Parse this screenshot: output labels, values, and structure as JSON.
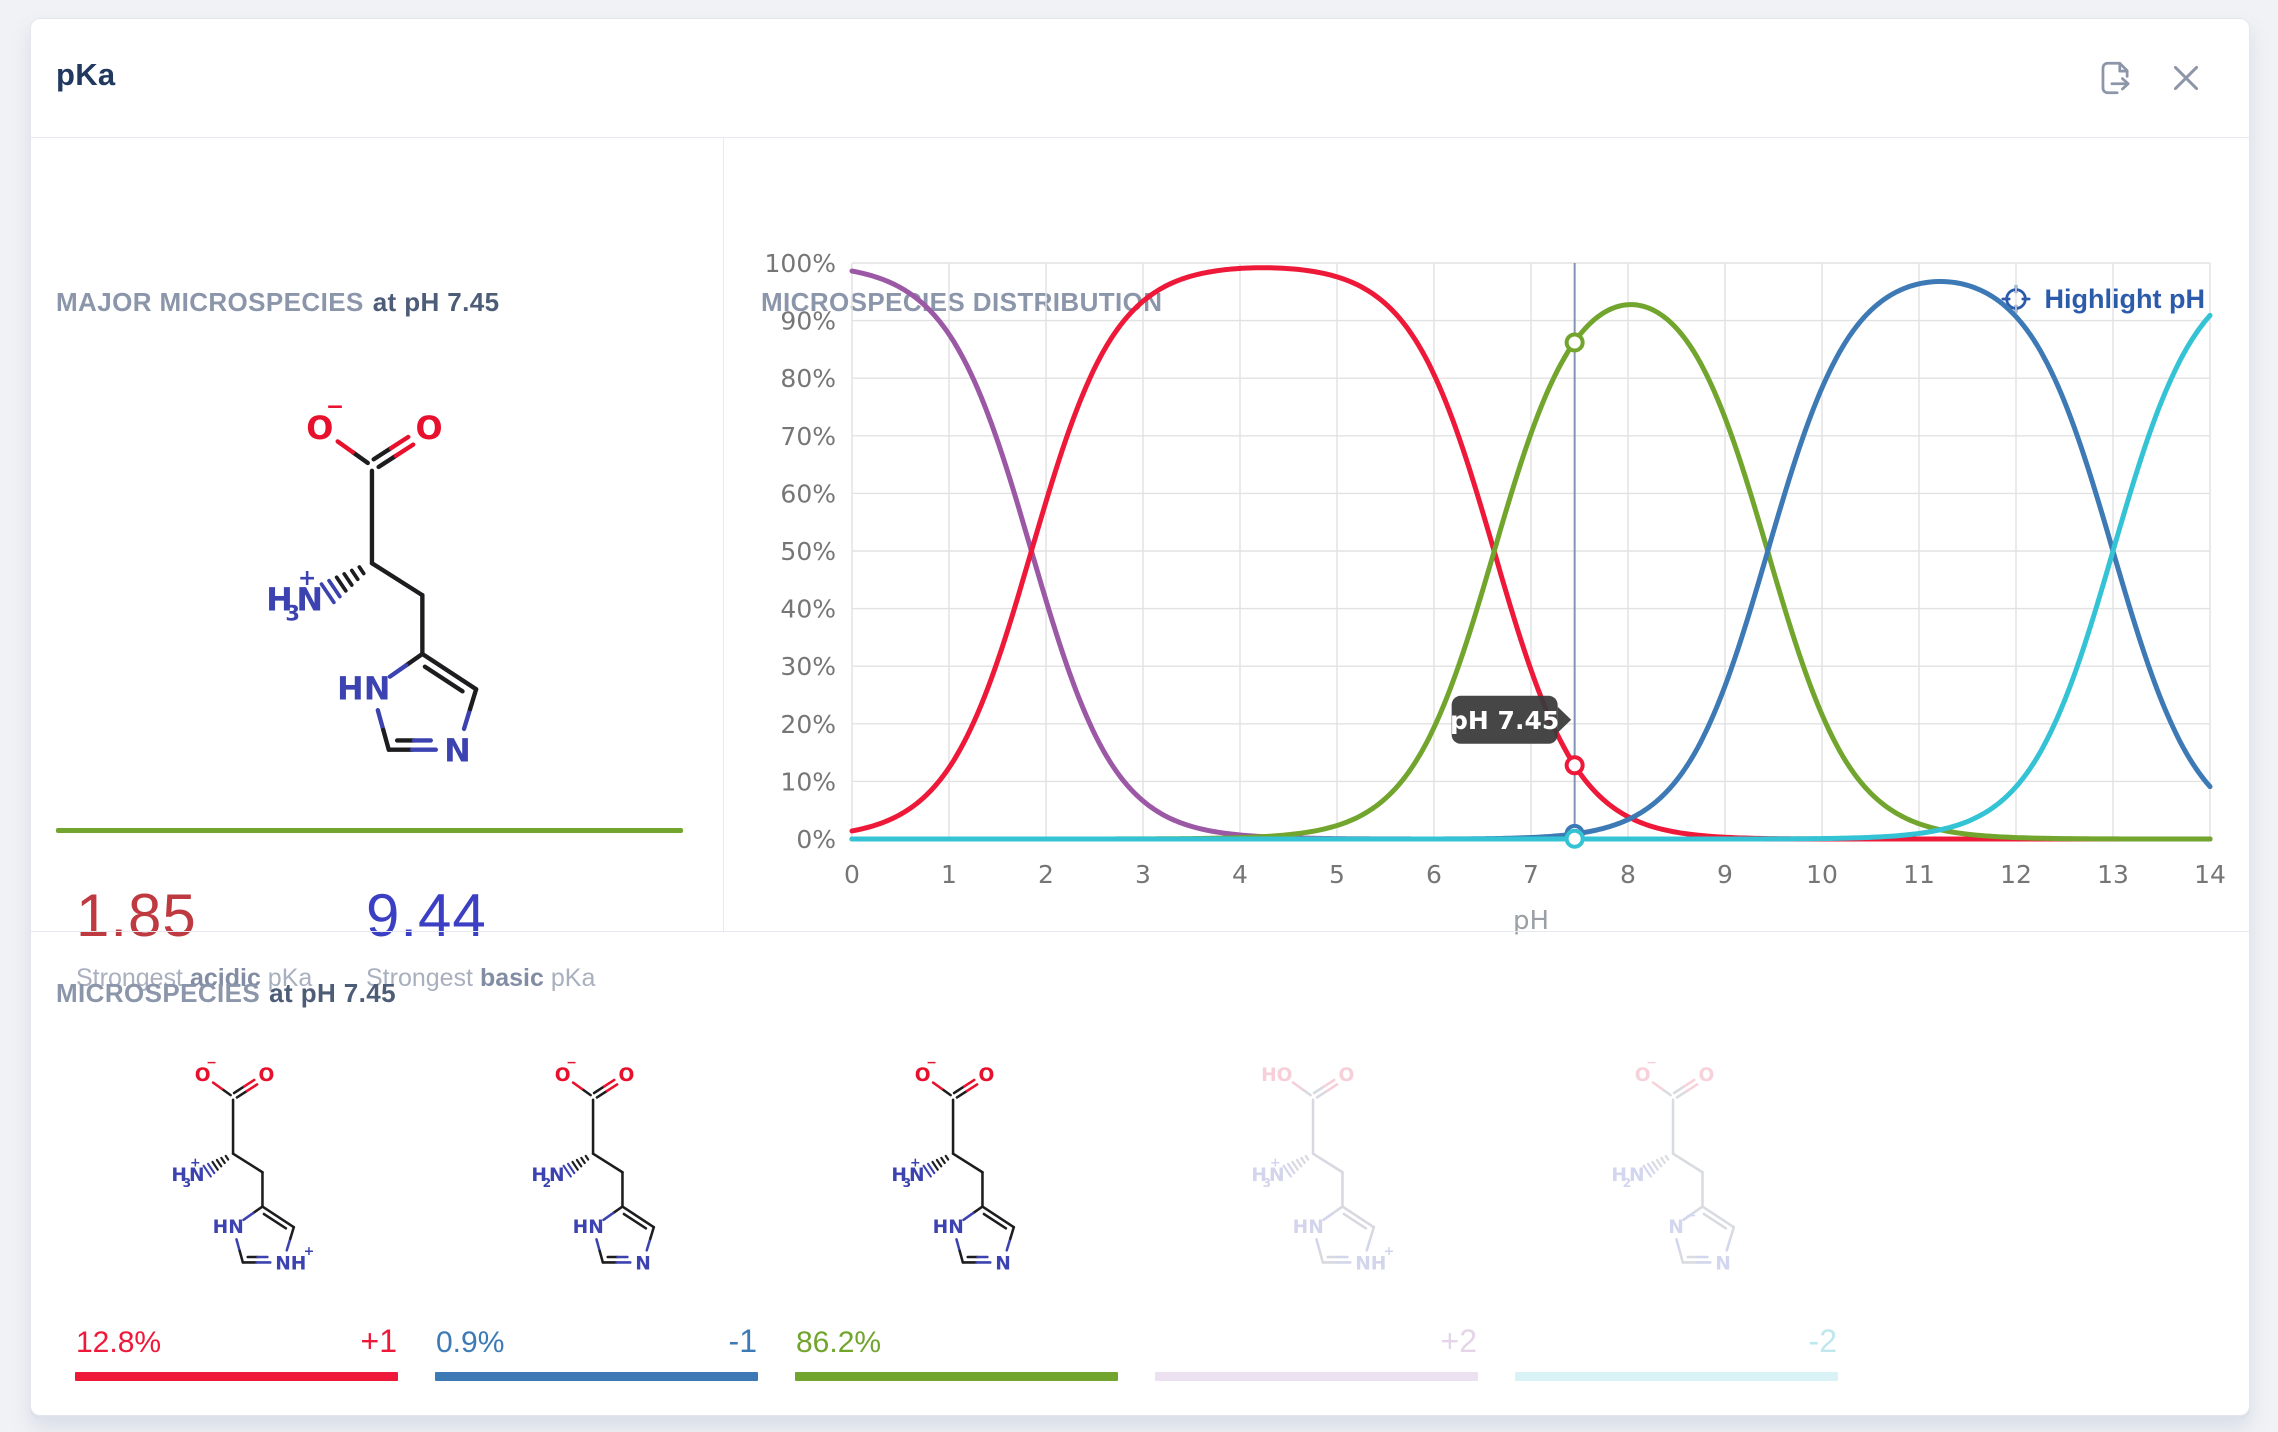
{
  "header": {
    "title": "pKa",
    "icons": [
      "export-icon",
      "close-icon"
    ],
    "icon_color": "#8d95a9"
  },
  "major_panel": {
    "heading_gray": "MAJOR MICROSPECIES",
    "heading_dark": "at pH 7.45",
    "rule_color": "#72a52d",
    "acidic_pka": {
      "value": "1.85",
      "color": "#bf3a40",
      "label_pre": "Strongest",
      "label_bold": "acidic",
      "label_post": "pKa"
    },
    "basic_pka": {
      "value": "9.44",
      "color": "#3b3fc4",
      "label_pre": "Strongest",
      "label_bold": "basic",
      "label_post": "pKa"
    },
    "structure": {
      "acid_left": "O",
      "acid_left_sup": "−",
      "acid_right": "O",
      "amine_h": "H",
      "amine_sub": "3",
      "amine_n": "N",
      "amine_sup": "+",
      "ring_left": "HN",
      "ring_left_sup": "",
      "ring_right": "N",
      "ring_right_sup": "",
      "colors": {
        "bond": "#1d1d20",
        "nitrogen": "#3c43b0",
        "oxygen": "#e8112d"
      }
    }
  },
  "distribution_panel": {
    "heading": "MICROSPECIES DISTRIBUTION",
    "highlight_button": "Highlight pH",
    "accent_blue": "#2c5bab",
    "tooltip": "pH 7.45",
    "tooltip_bg": "#3a3a3c"
  },
  "chart_data": {
    "type": "line",
    "title": "MICROSPECIES DISTRIBUTION",
    "xlabel": "pH",
    "ylabel": "",
    "xlim": [
      0,
      14
    ],
    "ylim": [
      0,
      100
    ],
    "grid": true,
    "legend": "none",
    "x_ticks": [
      "0",
      "1",
      "2",
      "3",
      "4",
      "5",
      "6",
      "7",
      "8",
      "9",
      "10",
      "11",
      "12",
      "13",
      "14"
    ],
    "y_ticks": [
      "0%",
      "10%",
      "20%",
      "30%",
      "40%",
      "50%",
      "60%",
      "70%",
      "80%",
      "90%",
      "100%"
    ],
    "grid_color": "#e2e2e2",
    "tick_color": "#767676",
    "axis_label_color": "#9aa0a6",
    "model": {
      "type": "microspecies_fractions",
      "pkas": [
        1.85,
        6.62,
        9.44,
        13.0
      ]
    },
    "x_samples": [
      0,
      1,
      2,
      3,
      4,
      5,
      6,
      7,
      8,
      9,
      10,
      11,
      12,
      13,
      14
    ],
    "series": [
      {
        "name": "+2",
        "color": "#9b58a5",
        "values": [
          98.6,
          87.6,
          41.4,
          6.6,
          0.7,
          0.1,
          0,
          0,
          0,
          0,
          0,
          0,
          0,
          0,
          0
        ]
      },
      {
        "name": "+1",
        "color": "#ee1839",
        "values": [
          1.4,
          12.4,
          58.5,
          93.3,
          99.1,
          97.6,
          80.6,
          29.3,
          3.9,
          0.3,
          0,
          0,
          0,
          0,
          0
        ]
      },
      {
        "name": "0",
        "color": "#72a52d",
        "values": [
          0,
          0,
          0.1,
          0.2,
          0.2,
          2.3,
          19.3,
          70.4,
          92.8,
          73.1,
          21.6,
          2.7,
          0.2,
          0,
          0
        ]
      },
      {
        "name": "-1",
        "color": "#3d7ab5",
        "values": [
          0,
          0,
          0,
          0,
          0,
          0,
          0.1,
          0.3,
          3.4,
          26.6,
          78.3,
          96.4,
          90.7,
          50,
          9.1
        ]
      },
      {
        "name": "-2",
        "color": "#34c3d4",
        "values": [
          0,
          0,
          0,
          0,
          0,
          0,
          0,
          0,
          0,
          0,
          0.1,
          1,
          9.1,
          50,
          90.9
        ]
      }
    ],
    "highlight_ph": 7.45,
    "highlight_line_color": "#8494b5",
    "markers": [
      {
        "series": "0",
        "value": 86.2,
        "color": "#72a52d"
      },
      {
        "series": "+1",
        "value": 12.8,
        "color": "#ee1839"
      },
      {
        "series": "-1",
        "value": 0.9,
        "color": "#3d7ab5"
      },
      {
        "series": "-2",
        "value": 0.05,
        "color": "#34c3d4"
      }
    ]
  },
  "microspecies_panel": {
    "heading_gray": "MICROSPECIES",
    "heading_dark": "at pH 7.45",
    "cards": [
      {
        "percent": "12.8%",
        "percent_color": "#ee1839",
        "charge": "+1",
        "charge_color": "#ee1839",
        "bar_color": "#ee1839",
        "structure": {
          "acid_left": "O",
          "acid_left_sup": "−",
          "acid_right": "O",
          "amine_h": "H",
          "amine_sub": "3",
          "amine_n": "N",
          "amine_sup": "+",
          "ring_left": "HN",
          "ring_left_sup": "",
          "ring_right": "NH",
          "ring_right_sup": "+",
          "colors": {
            "bond": "#1d1d20",
            "nitrogen": "#3c43b0",
            "oxygen": "#e8112d"
          }
        }
      },
      {
        "percent": "0.9%",
        "percent_color": "#3d7ab5",
        "charge": "-1",
        "charge_color": "#3d7ab5",
        "bar_color": "#3d7ab5",
        "structure": {
          "acid_left": "O",
          "acid_left_sup": "−",
          "acid_right": "O",
          "amine_h": "H",
          "amine_sub": "2",
          "amine_n": "N",
          "amine_sup": "",
          "ring_left": "HN",
          "ring_left_sup": "",
          "ring_right": "N",
          "ring_right_sup": "",
          "colors": {
            "bond": "#1d1d20",
            "nitrogen": "#3c43b0",
            "oxygen": "#e8112d"
          }
        }
      },
      {
        "percent": "86.2%",
        "percent_color": "#72a52d",
        "charge": "",
        "charge_color": "#72a52d",
        "bar_color": "#72a52d",
        "structure": {
          "acid_left": "O",
          "acid_left_sup": "−",
          "acid_right": "O",
          "amine_h": "H",
          "amine_sub": "3",
          "amine_n": "N",
          "amine_sup": "+",
          "ring_left": "HN",
          "ring_left_sup": "",
          "ring_right": "N",
          "ring_right_sup": "",
          "colors": {
            "bond": "#1d1d20",
            "nitrogen": "#3c43b0",
            "oxygen": "#e8112d"
          }
        }
      },
      {
        "percent": "",
        "percent_color": "#e4d5e9",
        "charge": "+2",
        "charge_color": "#e4d5e9",
        "bar_color": "#ece1f1",
        "structure": {
          "acid_left": "HO",
          "acid_left_sup": "",
          "acid_right": "O",
          "amine_h": "H",
          "amine_sub": "3",
          "amine_n": "N",
          "amine_sup": "+",
          "ring_left": "HN",
          "ring_left_sup": "",
          "ring_right": "NH",
          "ring_right_sup": "+",
          "colors": {
            "bond": "#d8d8e0",
            "nitrogen": "#d2d5ec",
            "oxygen": "#f6cfd8"
          }
        }
      },
      {
        "percent": "",
        "percent_color": "#bfe7ee",
        "charge": "-2",
        "charge_color": "#bfe7ee",
        "bar_color": "#d8f2f6",
        "structure": {
          "acid_left": "O",
          "acid_left_sup": "−",
          "acid_right": "O",
          "amine_h": "H",
          "amine_sub": "2",
          "amine_n": "N",
          "amine_sup": "",
          "ring_left": "N",
          "ring_left_sup": "−",
          "ring_right": "N",
          "ring_right_sup": "",
          "colors": {
            "bond": "#d8dbe0",
            "nitrogen": "#d2d6ee",
            "oxygen": "#f7d2da"
          }
        }
      }
    ]
  }
}
